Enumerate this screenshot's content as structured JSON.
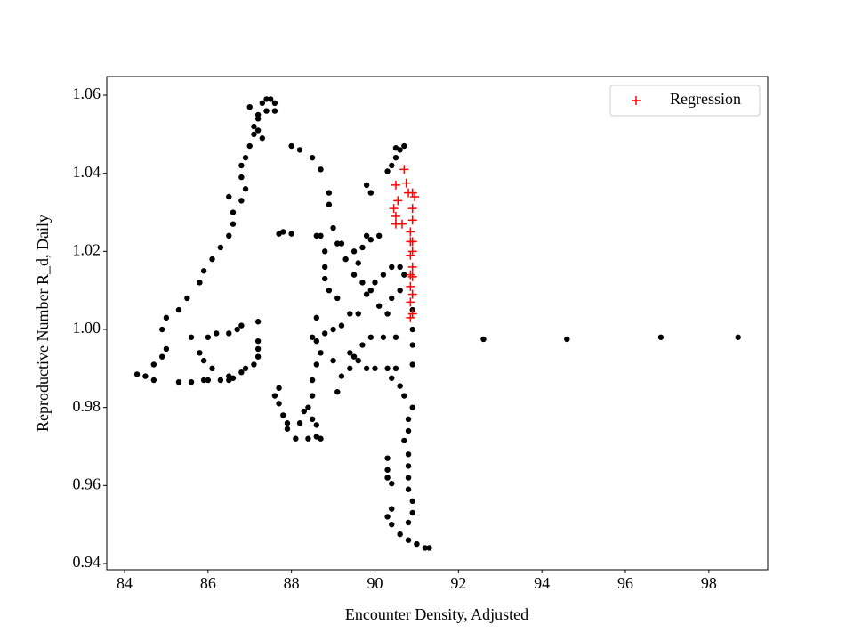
{
  "chart_data": {
    "type": "scatter",
    "xlabel": "Encounter Density, Adjusted",
    "ylabel": "Reproductive Number R_d, Daily",
    "xlim": [
      83.574,
      99.41
    ],
    "ylim": [
      0.9384,
      1.0648
    ],
    "xticks": [
      84,
      86,
      88,
      90,
      92,
      94,
      96,
      98
    ],
    "yticks": [
      {
        "value": 0.94,
        "label": "0.94"
      },
      {
        "value": 0.96,
        "label": "0.96"
      },
      {
        "value": 0.98,
        "label": "0.98"
      },
      {
        "value": 1.0,
        "label": "1.00"
      },
      {
        "value": 1.02,
        "label": "1.02"
      },
      {
        "value": 1.04,
        "label": "1.04"
      },
      {
        "value": 1.06,
        "label": "1.06"
      }
    ],
    "legend": "upper right",
    "series": [
      {
        "color": "#000000",
        "marker": "dot",
        "x": [
          84.3,
          84.5,
          84.7,
          84.7,
          84.9,
          85.0,
          84.9,
          85.0,
          85.3,
          85.5,
          85.8,
          85.9,
          86.1,
          86.3,
          86.5,
          86.6,
          86.6,
          86.8,
          86.5,
          86.9,
          86.8,
          86.8,
          86.9,
          87.0,
          87.1,
          87.1,
          87.2,
          87.0,
          87.2,
          87.3,
          87.4,
          87.5,
          87.6,
          87.6,
          87.4,
          87.2,
          87.3,
          85.3,
          85.6,
          85.9,
          86.0,
          86.3,
          86.5,
          86.6,
          86.8,
          86.9,
          87.1,
          87.2,
          87.2,
          87.2,
          87.2,
          86.8,
          86.7,
          86.5,
          86.2,
          86.0,
          85.8,
          85.9,
          85.6,
          86.1,
          86.5,
          87.7,
          87.8,
          88.0,
          88.0,
          88.2,
          88.5,
          88.7,
          88.9,
          88.9,
          89.0,
          89.1,
          89.2,
          88.7,
          88.6,
          88.8,
          88.8,
          88.8,
          88.9,
          89.1,
          88.6,
          89.0,
          89.2,
          89.4,
          89.6,
          89.5,
          89.3,
          89.5,
          89.8,
          89.9,
          89.7,
          89.6,
          89.7,
          89.8,
          90.0,
          90.2,
          90.4,
          90.6,
          90.7,
          90.6,
          90.4,
          90.1,
          89.9,
          89.8,
          89.9,
          90.1,
          90.3,
          90.5,
          90.2,
          89.9,
          89.7,
          89.5,
          89.4,
          89.4,
          89.6,
          89.8,
          90.0,
          89.2,
          89.1,
          89.0,
          88.7,
          88.6,
          88.8,
          88.5,
          88.6,
          88.5,
          88.5,
          88.4,
          88.5,
          88.6,
          88.6,
          88.7,
          88.4,
          88.1,
          87.9,
          88.2,
          88.3,
          87.9,
          87.8,
          87.7,
          87.6,
          87.7,
          90.3,
          90.5,
          90.4,
          90.6,
          90.7,
          90.9,
          90.8,
          90.8,
          90.7,
          90.8,
          90.8,
          90.8,
          90.8,
          90.9,
          90.9,
          90.8,
          90.6,
          90.8,
          91.0,
          91.2,
          91.3,
          90.3,
          90.3,
          90.3,
          90.4,
          90.4,
          90.3,
          90.4,
          90.9,
          90.9,
          90.9,
          90.9,
          90.4,
          90.5,
          90.6,
          90.5,
          90.7,
          90.3,
          92.6,
          94.6,
          96.85,
          98.7
        ],
        "y": [
          0.9885,
          0.988,
          0.991,
          0.987,
          0.993,
          0.995,
          1.0,
          1.003,
          1.005,
          1.008,
          1.012,
          1.015,
          1.018,
          1.021,
          1.024,
          1.027,
          1.03,
          1.033,
          1.034,
          1.036,
          1.039,
          1.042,
          1.044,
          1.047,
          1.05,
          1.052,
          1.054,
          1.057,
          1.055,
          1.058,
          1.059,
          1.059,
          1.058,
          1.056,
          1.056,
          1.051,
          1.049,
          0.9865,
          0.9865,
          0.987,
          0.987,
          0.987,
          0.988,
          0.9875,
          0.989,
          0.99,
          0.991,
          0.993,
          0.995,
          0.997,
          1.002,
          1.001,
          1.0,
          0.999,
          0.999,
          0.998,
          0.994,
          0.992,
          0.998,
          0.99,
          0.987,
          1.0245,
          1.025,
          1.0245,
          1.047,
          1.046,
          1.044,
          1.041,
          1.035,
          1.032,
          1.026,
          1.022,
          1.022,
          1.024,
          1.024,
          1.02,
          1.016,
          1.013,
          1.01,
          1.008,
          1.003,
          1.0,
          1.001,
          1.004,
          1.004,
          1.014,
          1.018,
          1.02,
          1.024,
          1.023,
          1.021,
          1.017,
          1.012,
          1.009,
          1.012,
          1.014,
          1.016,
          1.016,
          1.014,
          1.01,
          1.008,
          1.006,
          1.01,
          1.037,
          1.035,
          1.024,
          1.004,
          0.998,
          0.998,
          0.998,
          0.996,
          0.993,
          0.99,
          0.994,
          0.992,
          0.99,
          0.99,
          0.988,
          0.984,
          0.992,
          0.994,
          0.997,
          0.999,
          0.998,
          0.991,
          0.987,
          0.983,
          0.98,
          0.977,
          0.9755,
          0.9725,
          0.972,
          0.972,
          0.972,
          0.9745,
          0.976,
          0.979,
          0.976,
          0.978,
          0.981,
          0.983,
          0.985,
          0.99,
          0.99,
          0.9875,
          0.9855,
          0.983,
          0.98,
          0.977,
          0.974,
          0.9715,
          0.968,
          0.965,
          0.962,
          0.959,
          0.956,
          0.953,
          0.9505,
          0.9475,
          0.946,
          0.945,
          0.944,
          0.944,
          0.967,
          0.964,
          0.962,
          0.9605,
          0.954,
          0.952,
          0.95,
          0.991,
          0.996,
          1.005,
          1.0,
          1.042,
          1.044,
          1.046,
          1.0465,
          1.047,
          1.0405,
          0.9975,
          0.9975,
          0.998,
          0.998
        ]
      },
      {
        "name": "Regression",
        "color": "#ff0000",
        "marker": "plus",
        "x": [
          90.7,
          90.5,
          90.75,
          90.8,
          90.9,
          90.95,
          90.45,
          90.55,
          90.5,
          90.5,
          90.65,
          90.9,
          90.9,
          90.85,
          90.9,
          90.85,
          90.9,
          90.85,
          90.9,
          90.85,
          90.9,
          90.85,
          90.9,
          90.85,
          90.9,
          90.85
        ],
        "y": [
          1.041,
          1.037,
          1.0375,
          1.035,
          1.035,
          1.034,
          1.031,
          1.033,
          1.029,
          1.027,
          1.027,
          1.031,
          1.028,
          1.025,
          1.0225,
          1.0225,
          1.02,
          1.019,
          1.016,
          1.014,
          1.0135,
          1.011,
          1.009,
          1.007,
          1.004,
          1.003
        ]
      }
    ]
  }
}
